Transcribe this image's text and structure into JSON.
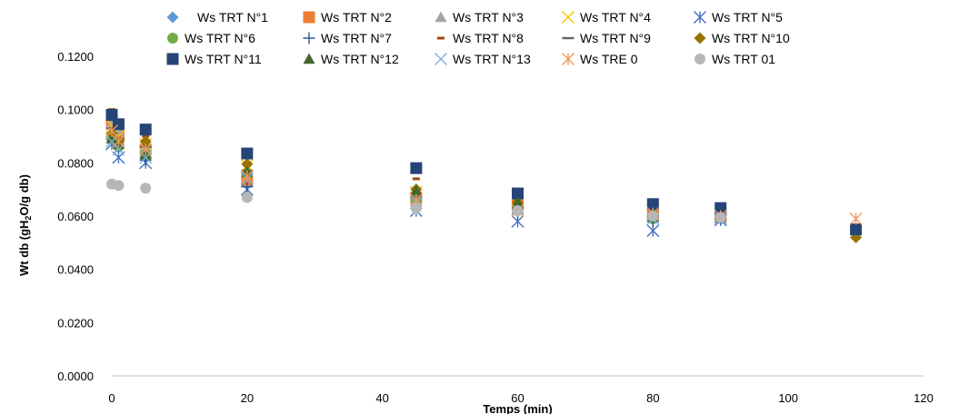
{
  "chart_data": {
    "type": "scatter",
    "xlabel": "Temps (min)",
    "ylabel": "Wt db (gH2O/g db)",
    "xlim": [
      0,
      120
    ],
    "ylim": [
      0,
      0.12
    ],
    "xticks": [
      "0",
      "20",
      "40",
      "60",
      "80",
      "100",
      "120"
    ],
    "yticks": [
      "0.0000",
      "0.0200",
      "0.0400",
      "0.0600",
      "0.0800",
      "0.1000",
      "0.1200"
    ],
    "grid": false,
    "legend_position": "top",
    "series": [
      {
        "name": "Ws TRT N°1",
        "marker": "diamond",
        "color": "#5b9bd5",
        "points": [
          [
            0,
            0.09
          ],
          [
            1,
            0.087
          ],
          [
            5,
            0.082
          ],
          [
            20,
            0.0755
          ],
          [
            45,
            0.065
          ],
          [
            60,
            0.0625
          ],
          [
            80,
            0.0595
          ],
          [
            90,
            0.059
          ]
        ]
      },
      {
        "name": "Ws TRT N°2",
        "marker": "square",
        "color": "#ed7d31",
        "points": [
          [
            0,
            0.096
          ],
          [
            1,
            0.09
          ],
          [
            5,
            0.085
          ],
          [
            20,
            0.073
          ],
          [
            45,
            0.067
          ],
          [
            60,
            0.064
          ],
          [
            80,
            0.06
          ],
          [
            90,
            0.06
          ]
        ]
      },
      {
        "name": "Ws TRT N°3",
        "marker": "triangle",
        "color": "#a5a5a5",
        "points": [
          [
            0,
            0.095
          ],
          [
            1,
            0.092
          ],
          [
            5,
            0.086
          ],
          [
            20,
            0.078
          ],
          [
            45,
            0.068
          ],
          [
            60,
            0.064
          ],
          [
            80,
            0.061
          ],
          [
            90,
            0.059
          ]
        ]
      },
      {
        "name": "Ws TRT N°4",
        "marker": "x",
        "color": "#ffc000",
        "points": [
          [
            0,
            0.094
          ],
          [
            1,
            0.09
          ],
          [
            5,
            0.087
          ],
          [
            20,
            0.079
          ],
          [
            45,
            0.069
          ],
          [
            60,
            0.065
          ],
          [
            80,
            0.062
          ],
          [
            90,
            0.06
          ]
        ]
      },
      {
        "name": "Ws TRT N°5",
        "marker": "star",
        "color": "#4472c4",
        "points": [
          [
            0,
            0.087
          ],
          [
            1,
            0.082
          ],
          [
            5,
            0.08
          ],
          [
            20,
            0.07
          ],
          [
            45,
            0.062
          ],
          [
            60,
            0.058
          ],
          [
            80,
            0.0545
          ],
          [
            90,
            0.0585
          ]
        ]
      },
      {
        "name": "Ws TRT N°6",
        "marker": "circle",
        "color": "#70ad47",
        "points": [
          [
            0,
            0.089
          ],
          [
            1,
            0.086
          ],
          [
            5,
            0.083
          ],
          [
            20,
            0.076
          ],
          [
            45,
            0.066
          ],
          [
            60,
            0.063
          ],
          [
            80,
            0.059
          ],
          [
            90,
            0.06
          ]
        ]
      },
      {
        "name": "Ws TRT N°7",
        "marker": "plus",
        "color": "#255e91",
        "points": [
          [
            0,
            0.091
          ],
          [
            1,
            0.086
          ],
          [
            5,
            0.081
          ],
          [
            20,
            0.071
          ],
          [
            45,
            0.064
          ],
          [
            60,
            0.061
          ],
          [
            80,
            0.058
          ],
          [
            90,
            0.059
          ]
        ]
      },
      {
        "name": "Ws TRT N°8",
        "marker": "dash",
        "color": "#9e480e",
        "points": [
          [
            0,
            0.1
          ],
          [
            1,
            0.095
          ],
          [
            5,
            0.09
          ],
          [
            20,
            0.08
          ],
          [
            45,
            0.074
          ],
          [
            60,
            0.066
          ],
          [
            80,
            0.066
          ],
          [
            90,
            0.0645
          ]
        ]
      },
      {
        "name": "Ws TRT N°9",
        "marker": "longdash",
        "color": "#636363",
        "points": [
          [
            0,
            0.093
          ],
          [
            1,
            0.089
          ],
          [
            5,
            0.086
          ],
          [
            20,
            0.077
          ],
          [
            45,
            0.067
          ],
          [
            60,
            0.063
          ],
          [
            80,
            0.06
          ],
          [
            90,
            0.058
          ]
        ]
      },
      {
        "name": "Ws TRT N°10",
        "marker": "diamond",
        "color": "#997300",
        "points": [
          [
            0,
            0.091
          ],
          [
            1,
            0.088
          ],
          [
            5,
            0.088
          ],
          [
            20,
            0.0795
          ],
          [
            45,
            0.07
          ],
          [
            60,
            0.065
          ],
          [
            80,
            0.063
          ],
          [
            90,
            0.06
          ],
          [
            110,
            0.052
          ]
        ]
      },
      {
        "name": "Ws TRT N°11",
        "marker": "square",
        "color": "#264478",
        "points": [
          [
            0,
            0.098
          ],
          [
            1,
            0.0945
          ],
          [
            5,
            0.0925
          ],
          [
            20,
            0.0835
          ],
          [
            45,
            0.078
          ],
          [
            60,
            0.0685
          ],
          [
            80,
            0.0645
          ],
          [
            90,
            0.063
          ],
          [
            110,
            0.055
          ]
        ]
      },
      {
        "name": "Ws TRT N°12",
        "marker": "triangle",
        "color": "#43682b",
        "points": [
          [
            0,
            0.089
          ],
          [
            1,
            0.087
          ],
          [
            5,
            0.083
          ],
          [
            20,
            0.0765
          ],
          [
            45,
            0.0695
          ],
          [
            60,
            0.065
          ],
          [
            80,
            0.061
          ],
          [
            90,
            0.06
          ]
        ]
      },
      {
        "name": "Ws TRT N°13",
        "marker": "x",
        "color": "#7cafdd",
        "points": [
          [
            0,
            0.088
          ],
          [
            1,
            0.085
          ],
          [
            5,
            0.082
          ],
          [
            20,
            0.074
          ],
          [
            45,
            0.065
          ],
          [
            60,
            0.062
          ],
          [
            80,
            0.059
          ],
          [
            90,
            0.059
          ]
        ]
      },
      {
        "name": "Ws TRE 0",
        "marker": "star",
        "color": "#f1975a",
        "points": [
          [
            0,
            0.092
          ],
          [
            1,
            0.088
          ],
          [
            5,
            0.085
          ],
          [
            20,
            0.075
          ],
          [
            45,
            0.066
          ],
          [
            60,
            0.062
          ],
          [
            80,
            0.061
          ],
          [
            90,
            0.06
          ],
          [
            110,
            0.059
          ]
        ]
      },
      {
        "name": "Ws TRT 01",
        "marker": "circle",
        "color": "#b7b7b7",
        "points": [
          [
            0,
            0.072
          ],
          [
            1,
            0.0715
          ],
          [
            5,
            0.0705
          ],
          [
            20,
            0.067
          ],
          [
            45,
            0.063
          ],
          [
            60,
            0.062
          ],
          [
            80,
            0.06
          ],
          [
            90,
            0.0595
          ]
        ]
      }
    ]
  }
}
